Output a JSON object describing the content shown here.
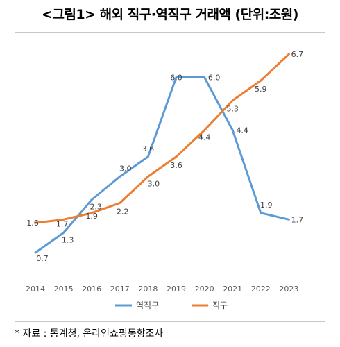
{
  "title": "<그림1> 해외 직구·역직구 거래액 (단위:조원)",
  "source": "* 자료 : 통계청, 온라인쇼핑동향조사",
  "chart_data": {
    "type": "line",
    "categories": [
      "2014",
      "2015",
      "2016",
      "2017",
      "2018",
      "2019",
      "2020",
      "2021",
      "2022",
      "2023"
    ],
    "ylim": [
      0,
      7
    ],
    "grid": false,
    "legend_position": "bottom",
    "series": [
      {
        "name": "역직구",
        "color": "#5B9BD5",
        "values": [
          0.7,
          1.3,
          2.3,
          3.0,
          3.6,
          6.0,
          6.0,
          4.4,
          1.9,
          1.7
        ]
      },
      {
        "name": "직구",
        "color": "#ED7D31",
        "values": [
          1.6,
          1.7,
          1.9,
          2.2,
          3.0,
          3.6,
          4.4,
          5.3,
          5.9,
          6.7
        ]
      }
    ]
  }
}
